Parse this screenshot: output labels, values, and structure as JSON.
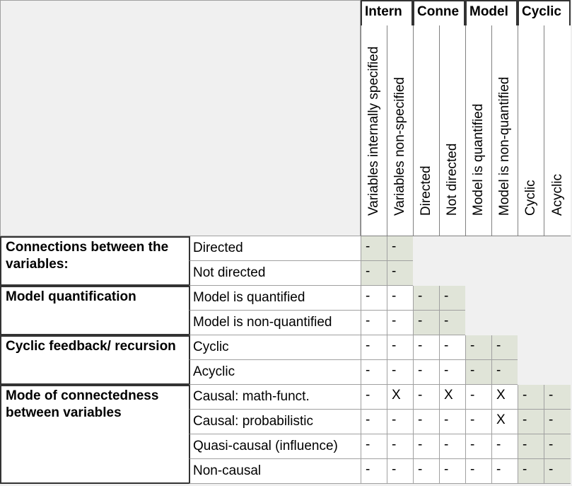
{
  "groups": [
    "Intern",
    "Conne",
    "Model",
    "Cyclic"
  ],
  "columns": [
    "Variables internally specified",
    "Variables non-specified",
    "Directed",
    "Not directed",
    "Model is quantified",
    "Model is non-quantified",
    "Cyclic",
    "Acyclic"
  ],
  "categories": [
    {
      "label": "Connections between the variables:",
      "rows": [
        {
          "label": "Directed",
          "cells": [
            "-",
            "-"
          ]
        },
        {
          "label": "Not directed",
          "cells": [
            "-",
            "-"
          ]
        }
      ]
    },
    {
      "label": "Model quantification",
      "rows": [
        {
          "label": "Model is quantified",
          "cells": [
            "-",
            "-",
            "-",
            "-"
          ]
        },
        {
          "label": "Model is non-quantified",
          "cells": [
            "-",
            "-",
            "-",
            "-"
          ]
        }
      ]
    },
    {
      "label": "Cyclic feedback/ recursion",
      "rows": [
        {
          "label": "Cyclic",
          "cells": [
            "-",
            "-",
            "-",
            "-",
            "-",
            "-"
          ]
        },
        {
          "label": "Acyclic",
          "cells": [
            "-",
            "-",
            "-",
            "-",
            "-",
            "-"
          ]
        }
      ]
    },
    {
      "label": "Mode of connectedness between variables",
      "rows": [
        {
          "label": "Causal: math-funct.",
          "cells": [
            "-",
            "X",
            "-",
            "X",
            "-",
            "X",
            "-",
            "-"
          ]
        },
        {
          "label": "Causal: probabilistic",
          "cells": [
            "-",
            "-",
            "-",
            "-",
            "-",
            "X",
            "-",
            "-"
          ]
        },
        {
          "label": "Quasi-causal (influence)",
          "cells": [
            "-",
            "-",
            "-",
            "-",
            "-",
            "-",
            "-",
            "-"
          ]
        },
        {
          "label": "Non-causal",
          "cells": [
            "-",
            "-",
            "-",
            "-",
            "-",
            "-",
            "-",
            "-"
          ]
        }
      ]
    }
  ]
}
